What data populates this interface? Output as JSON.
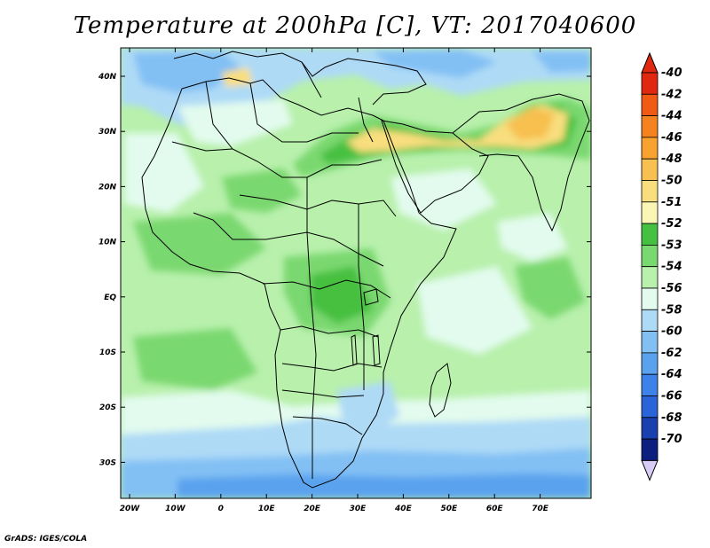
{
  "title": "Temperature at 200hPa [C], VT: 2017040600",
  "footer": "GrADS: IGES/COLA",
  "map": {
    "lon_labels": [
      "20W",
      "10W",
      "0",
      "10E",
      "20E",
      "30E",
      "40E",
      "50E",
      "60E",
      "70E"
    ],
    "lat_labels": [
      "40N",
      "30N",
      "20N",
      "10N",
      "EQ",
      "10S",
      "20S",
      "30S"
    ]
  },
  "colorbar": {
    "levels": [
      {
        "label": "-40",
        "color": "#e02810"
      },
      {
        "label": "-42",
        "color": "#f05a14"
      },
      {
        "label": "-44",
        "color": "#f4821e"
      },
      {
        "label": "-46",
        "color": "#f8a232"
      },
      {
        "label": "-48",
        "color": "#f7c050"
      },
      {
        "label": "-50",
        "color": "#f9de7e"
      },
      {
        "label": "-51",
        "color": "#fbf6b6"
      },
      {
        "label": "-52",
        "color": "#46c040"
      },
      {
        "label": "-53",
        "color": "#7ad870"
      },
      {
        "label": "-54",
        "color": "#b8f0ac"
      },
      {
        "label": "-56",
        "color": "#e2fbee"
      },
      {
        "label": "-58",
        "color": "#aedaf6"
      },
      {
        "label": "-60",
        "color": "#82c0f4"
      },
      {
        "label": "-62",
        "color": "#5aa2ee"
      },
      {
        "label": "-64",
        "color": "#3c82e8"
      },
      {
        "label": "-66",
        "color": "#2a64d8"
      },
      {
        "label": "-68",
        "color": "#1a40b0"
      },
      {
        "label": "-70",
        "color": "#0c1e7e"
      }
    ],
    "top_triangle_color": "#e02810",
    "bottom_triangle_color": "#d8ccf6"
  }
}
